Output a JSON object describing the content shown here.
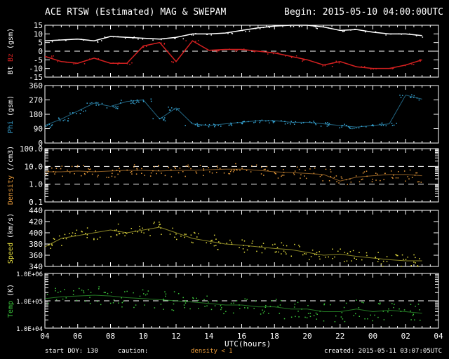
{
  "header": {
    "title": "ACE RTSW (Estimated) MAG & SWEPAM",
    "begin": "Begin: 2015-05-10 04:00:00UTC"
  },
  "footer": {
    "start_doy": "start DOY: 130",
    "caution": "caution:",
    "density_note": "density < 1",
    "created": "created: 2015-05-11 03:07:05UTC"
  },
  "colors": {
    "bt": "#ffffff",
    "bz": "#d42020",
    "phi": "#38a8d8",
    "density": "#e89a3a",
    "speed": "#e8e040",
    "temp": "#3cc83c"
  },
  "chart_data": [
    {
      "type": "line",
      "id": "mag",
      "ylabel_parts": [
        "Bt",
        "Bz",
        "(gsm)"
      ],
      "ylim": [
        -15,
        15
      ],
      "scale": "linear",
      "yticks": [
        "15",
        "10",
        "5",
        "0",
        "-5",
        "-10",
        "-15"
      ],
      "ytick_values": [
        15,
        10,
        5,
        0,
        -5,
        -10,
        -15
      ],
      "dashed_refs": [
        0
      ],
      "x": [
        4,
        5,
        6,
        7,
        8,
        9,
        10,
        11,
        12,
        13,
        14,
        15,
        16,
        17,
        18,
        19,
        20,
        21,
        22,
        23,
        24,
        25,
        26,
        27
      ],
      "series": [
        {
          "name": "Bt",
          "color_key": "bt",
          "values": [
            6,
            6.5,
            7,
            6,
            8.5,
            8,
            7.5,
            7,
            8,
            10,
            10,
            10.5,
            12,
            13.5,
            14.5,
            15,
            15,
            14,
            12,
            12.5,
            11,
            10,
            10,
            9
          ]
        },
        {
          "name": "Bz",
          "color_key": "bz",
          "values": [
            -3,
            -6,
            -7,
            -4,
            -7,
            -7,
            3,
            5,
            -6,
            6,
            0.5,
            1,
            1,
            0,
            -1,
            -3,
            -5,
            -8,
            -6,
            -9,
            -10,
            -10,
            -8,
            -5
          ]
        }
      ]
    },
    {
      "type": "scatter",
      "id": "phi",
      "ylabel_parts": [
        "Phi",
        "(gsm)"
      ],
      "ylim": [
        0,
        360
      ],
      "scale": "linear",
      "yticks": [
        "360",
        "270",
        "180",
        "90",
        "0"
      ],
      "ytick_values": [
        360,
        270,
        180,
        90,
        0
      ],
      "dashed_refs": [],
      "x": [
        4,
        5,
        6,
        7,
        8,
        9,
        10,
        11,
        12,
        13,
        14,
        15,
        16,
        17,
        18,
        19,
        20,
        21,
        22,
        23,
        24,
        25,
        26,
        27
      ],
      "series": [
        {
          "name": "Phi",
          "color_key": "phi",
          "values": [
            110,
            150,
            200,
            250,
            230,
            260,
            270,
            150,
            220,
            120,
            110,
            120,
            130,
            140,
            140,
            130,
            130,
            120,
            110,
            100,
            110,
            120,
            300,
            275
          ]
        }
      ]
    },
    {
      "type": "scatter",
      "id": "density",
      "ylabel_parts": [
        "Density",
        "(/cm3)"
      ],
      "ylim": [
        0.1,
        100
      ],
      "scale": "log",
      "yticks": [
        "100.0",
        "10.0",
        "1.0",
        "0.1"
      ],
      "ytick_values": [
        100,
        10,
        1,
        0.1
      ],
      "dashed_refs": [
        10,
        1
      ],
      "x": [
        4,
        5,
        6,
        7,
        8,
        9,
        10,
        11,
        12,
        13,
        14,
        15,
        16,
        17,
        18,
        19,
        20,
        21,
        22,
        23,
        24,
        25,
        26,
        27
      ],
      "series": [
        {
          "name": "Density",
          "color_key": "density",
          "values": [
            5,
            5,
            5.5,
            5,
            5.5,
            6,
            6,
            5.5,
            6,
            6,
            6.5,
            7,
            7,
            6,
            5,
            4.5,
            4,
            3.5,
            1.5,
            2.5,
            3,
            3.5,
            3.5,
            3
          ]
        }
      ]
    },
    {
      "type": "scatter",
      "id": "speed",
      "ylabel_parts": [
        "Speed",
        "(km/s)"
      ],
      "ylim": [
        340,
        440
      ],
      "scale": "linear",
      "yticks": [
        "440",
        "420",
        "400",
        "380",
        "360",
        "340"
      ],
      "ytick_values": [
        440,
        420,
        400,
        380,
        360,
        340
      ],
      "dashed_refs": [],
      "x": [
        4,
        5,
        6,
        7,
        8,
        9,
        10,
        11,
        12,
        13,
        14,
        15,
        16,
        17,
        18,
        19,
        20,
        21,
        22,
        23,
        24,
        25,
        26,
        27
      ],
      "series": [
        {
          "name": "Speed",
          "color_key": "speed",
          "values": [
            375,
            390,
            395,
            400,
            405,
            400,
            405,
            410,
            400,
            390,
            385,
            380,
            378,
            375,
            372,
            370,
            365,
            360,
            362,
            358,
            355,
            352,
            350,
            350
          ]
        }
      ]
    },
    {
      "type": "scatter",
      "id": "temp",
      "ylabel_parts": [
        "Temp",
        "(K)"
      ],
      "ylim": [
        10000,
        1000000
      ],
      "scale": "log",
      "yticks": [
        "1.0E+06",
        "1.0E+05",
        "1.0E+04"
      ],
      "ytick_values": [
        1000000,
        100000,
        10000
      ],
      "dashed_refs": [
        100000
      ],
      "x": [
        4,
        5,
        6,
        7,
        8,
        9,
        10,
        11,
        12,
        13,
        14,
        15,
        16,
        17,
        18,
        19,
        20,
        21,
        22,
        23,
        24,
        25,
        26,
        27
      ],
      "series": [
        {
          "name": "Temp",
          "color_key": "temp",
          "values": [
            120000,
            140000,
            150000,
            160000,
            150000,
            130000,
            120000,
            110000,
            100000,
            90000,
            80000,
            70000,
            70000,
            60000,
            60000,
            50000,
            50000,
            40000,
            40000,
            50000,
            40000,
            45000,
            40000,
            35000
          ]
        }
      ]
    }
  ],
  "xaxis": {
    "label": "UTC(hours)",
    "ticks": [
      "04",
      "06",
      "08",
      "10",
      "12",
      "14",
      "16",
      "18",
      "20",
      "22",
      "00",
      "02",
      "04"
    ],
    "range_hours": [
      4,
      28
    ]
  }
}
